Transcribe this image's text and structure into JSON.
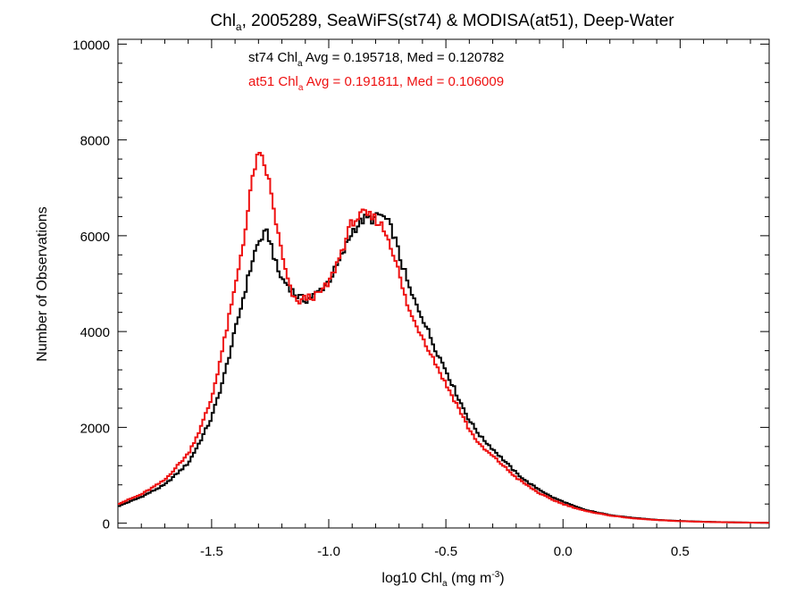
{
  "chart_data": {
    "type": "line",
    "title": {
      "prefix": "Chl",
      "subscript": "a",
      "rest": ", 2005289, SeaWiFS(st74) & MODISA(at51), Deep-Water"
    },
    "xlabel": {
      "prefix": "log10 Chl",
      "subscript": "a",
      "middle": " (mg m",
      "superscript": "-3",
      "suffix": ")"
    },
    "ylabel": "Number of Observations",
    "xlim": [
      -1.9,
      0.88
    ],
    "ylim": [
      -100,
      10100
    ],
    "x_ticks": [
      -1.5,
      -1.0,
      -0.5,
      0.0,
      0.5
    ],
    "x_tick_labels": [
      "-1.5",
      "-1.0",
      "-0.5",
      "0.0",
      "0.5"
    ],
    "y_ticks": [
      0,
      2000,
      4000,
      6000,
      8000,
      10000
    ],
    "y_tick_labels": [
      "0",
      "2000",
      "4000",
      "6000",
      "8000",
      "10000"
    ],
    "grid": false,
    "step": "histogram",
    "annotations": [
      {
        "id": "st74",
        "color": "#000000",
        "prefix": "st74 Chl",
        "subscript": "a",
        "suffix": " Avg = 0.195718, Med = 0.120782"
      },
      {
        "id": "at51",
        "color": "#ee1111",
        "prefix": "at51 Chl",
        "subscript": "a",
        "suffix": " Avg = 0.191811, Med = 0.106009"
      }
    ],
    "series": [
      {
        "id": "st74",
        "color": "#000000",
        "x": [
          -1.9,
          -1.8,
          -1.7,
          -1.6,
          -1.55,
          -1.5,
          -1.45,
          -1.4,
          -1.35,
          -1.32,
          -1.3,
          -1.28,
          -1.26,
          -1.24,
          -1.22,
          -1.2,
          -1.17,
          -1.14,
          -1.1,
          -1.05,
          -1.0,
          -0.95,
          -0.9,
          -0.85,
          -0.8,
          -0.78,
          -0.75,
          -0.72,
          -0.7,
          -0.68,
          -0.65,
          -0.6,
          -0.55,
          -0.5,
          -0.45,
          -0.4,
          -0.35,
          -0.3,
          -0.25,
          -0.2,
          -0.15,
          -0.1,
          -0.05,
          0.0,
          0.05,
          0.1,
          0.2,
          0.3,
          0.4,
          0.5,
          0.6,
          0.7,
          0.8,
          0.88
        ],
        "y": [
          350,
          550,
          800,
          1250,
          1700,
          2200,
          3000,
          4000,
          5000,
          5600,
          5850,
          6000,
          6050,
          5700,
          5300,
          5100,
          4950,
          4750,
          4650,
          4800,
          5050,
          5500,
          6100,
          6350,
          6350,
          6450,
          6300,
          6000,
          5600,
          5300,
          4800,
          4300,
          3700,
          3200,
          2650,
          2150,
          1800,
          1550,
          1300,
          1050,
          850,
          700,
          550,
          450,
          350,
          270,
          170,
          110,
          70,
          45,
          30,
          20,
          12,
          8
        ]
      },
      {
        "id": "at51",
        "color": "#ee1111",
        "x": [
          -1.9,
          -1.8,
          -1.7,
          -1.6,
          -1.55,
          -1.5,
          -1.45,
          -1.4,
          -1.35,
          -1.32,
          -1.3,
          -1.28,
          -1.26,
          -1.24,
          -1.22,
          -1.2,
          -1.17,
          -1.14,
          -1.1,
          -1.05,
          -1.0,
          -0.95,
          -0.9,
          -0.85,
          -0.8,
          -0.78,
          -0.75,
          -0.72,
          -0.7,
          -0.68,
          -0.65,
          -0.6,
          -0.55,
          -0.5,
          -0.45,
          -0.4,
          -0.35,
          -0.3,
          -0.25,
          -0.2,
          -0.15,
          -0.1,
          -0.05,
          0.0,
          0.05,
          0.1,
          0.2,
          0.3,
          0.4,
          0.5,
          0.6,
          0.7,
          0.8,
          0.88
        ],
        "y": [
          400,
          600,
          900,
          1450,
          1950,
          2600,
          3700,
          4900,
          6300,
          7400,
          7650,
          7550,
          7250,
          6700,
          6150,
          5600,
          4950,
          4600,
          4700,
          4750,
          5000,
          5600,
          6300,
          6450,
          6350,
          6250,
          6000,
          5600,
          5200,
          4800,
          4350,
          3900,
          3400,
          2900,
          2450,
          1950,
          1600,
          1400,
          1180,
          950,
          780,
          620,
          500,
          400,
          320,
          250,
          160,
          100,
          65,
          42,
          28,
          18,
          12,
          8
        ]
      }
    ]
  }
}
